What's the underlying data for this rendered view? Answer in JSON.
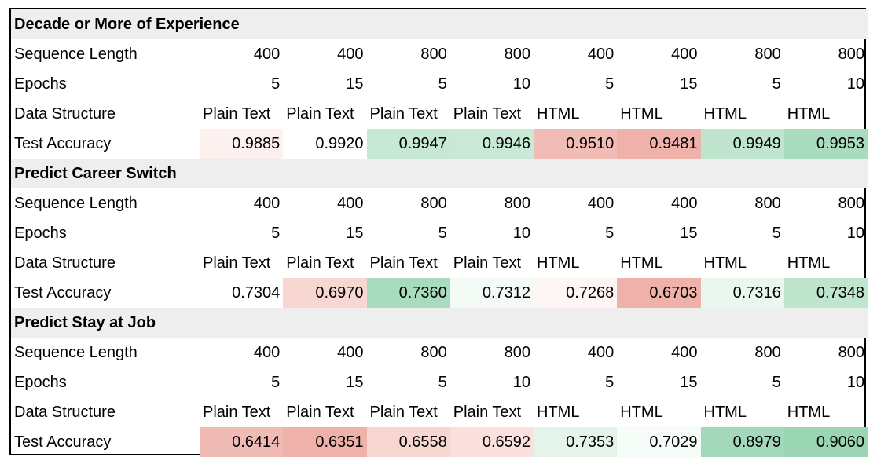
{
  "row_labels": {
    "sequence_length": "Sequence Length",
    "epochs": "Epochs",
    "data_structure": "Data Structure",
    "test_accuracy": "Test Accuracy"
  },
  "sections": [
    {
      "title": "Decade or More of Experience",
      "sequence_length": [
        "400",
        "400",
        "800",
        "800",
        "400",
        "400",
        "800",
        "800"
      ],
      "epochs": [
        "5",
        "15",
        "5",
        "10",
        "5",
        "15",
        "5",
        "10"
      ],
      "data_structure": [
        "Plain Text",
        "Plain Text",
        "Plain Text",
        "Plain Text",
        "HTML",
        "HTML",
        "HTML",
        "HTML"
      ],
      "test_accuracy": [
        "0.9885",
        "0.9920",
        "0.9947",
        "0.9946",
        "0.9510",
        "0.9481",
        "0.9949",
        "0.9953"
      ],
      "accuracy_colors": [
        "#fdf1f0",
        "#ffffff",
        "#c6e8d4",
        "#c9e9d6",
        "#f2bcb6",
        "#efb2ab",
        "#bfe5cf",
        "#a9dcbf"
      ]
    },
    {
      "title": "Predict Career Switch",
      "sequence_length": [
        "400",
        "400",
        "800",
        "800",
        "400",
        "400",
        "800",
        "800"
      ],
      "epochs": [
        "5",
        "15",
        "5",
        "10",
        "5",
        "15",
        "5",
        "10"
      ],
      "data_structure": [
        "Plain Text",
        "Plain Text",
        "Plain Text",
        "Plain Text",
        "HTML",
        "HTML",
        "HTML",
        "HTML"
      ],
      "test_accuracy": [
        "0.7304",
        "0.6970",
        "0.7360",
        "0.7312",
        "0.7268",
        "0.6703",
        "0.7316",
        "0.7348"
      ],
      "accuracy_colors": [
        "#ffffff",
        "#f8d6d2",
        "#a9dcbf",
        "#f4fbf7",
        "#fdf6f5",
        "#efb2ab",
        "#eaf7ef",
        "#bfe5cf"
      ]
    },
    {
      "title": "Predict Stay at Job",
      "sequence_length": [
        "400",
        "400",
        "800",
        "800",
        "400",
        "400",
        "800",
        "800"
      ],
      "epochs": [
        "5",
        "15",
        "5",
        "10",
        "5",
        "15",
        "5",
        "10"
      ],
      "data_structure": [
        "Plain Text",
        "Plain Text",
        "Plain Text",
        "Plain Text",
        "HTML",
        "HTML",
        "HTML",
        "HTML"
      ],
      "test_accuracy": [
        "0.6414",
        "0.6351",
        "0.6558",
        "0.6592",
        "0.7353",
        "0.7029",
        "0.8979",
        "0.9060"
      ],
      "accuracy_colors": [
        "#f1bbb5",
        "#efb2ab",
        "#f8d6d2",
        "#fae1de",
        "#e4f4ea",
        "#f6fcf8",
        "#a3d9ba",
        "#9ad6b3"
      ]
    }
  ]
}
